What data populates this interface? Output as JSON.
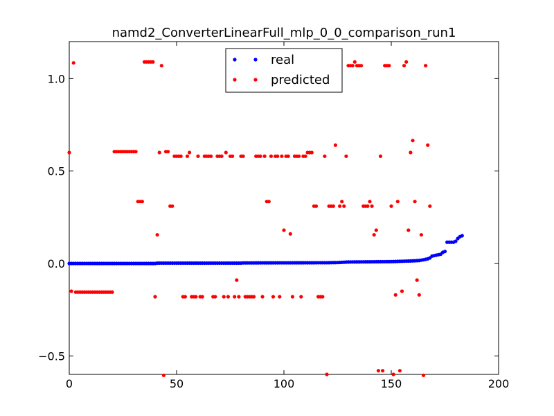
{
  "chart_data": {
    "type": "scatter",
    "title": "namd2_ConverterLinearFull_mlp_0_0_comparison_run1",
    "xlabel": "",
    "ylabel": "",
    "xlim": [
      0,
      200
    ],
    "ylim": [
      -0.6,
      1.2
    ],
    "x_ticks": [
      0,
      50,
      100,
      150,
      200
    ],
    "x_tick_labels": [
      "0",
      "50",
      "100",
      "150",
      "200"
    ],
    "y_ticks": [
      -0.5,
      0.0,
      0.5,
      1.0
    ],
    "y_tick_labels": [
      "−0.5",
      "0.0",
      "0.5",
      "1.0"
    ],
    "grid": false,
    "legend_position": "top-center",
    "series": [
      {
        "name": "real",
        "color": "#0000ff",
        "points": [
          [
            0,
            0.0
          ],
          [
            40,
            0.0
          ],
          [
            41,
            0.002
          ],
          [
            80,
            0.002
          ],
          [
            81,
            0.003
          ],
          [
            120,
            0.004
          ],
          [
            125,
            0.005
          ],
          [
            130,
            0.008
          ],
          [
            150,
            0.01
          ],
          [
            155,
            0.012
          ],
          [
            160,
            0.014
          ],
          [
            163,
            0.016
          ],
          [
            165,
            0.02
          ],
          [
            167,
            0.025
          ],
          [
            168,
            0.03
          ],
          [
            169,
            0.04
          ],
          [
            171,
            0.045
          ],
          [
            173,
            0.05
          ],
          [
            174,
            0.06
          ],
          [
            175,
            0.065
          ],
          [
            176,
            0.115
          ],
          [
            177,
            0.115
          ],
          [
            178,
            0.115
          ],
          [
            179,
            0.115
          ],
          [
            180,
            0.12
          ],
          [
            181,
            0.135
          ],
          [
            182,
            0.145
          ],
          [
            183,
            0.15
          ]
        ]
      },
      {
        "name": "predicted",
        "color": "#ff0000",
        "points": [
          [
            0,
            0.6
          ],
          [
            1,
            -0.15
          ],
          [
            2,
            1.085
          ],
          [
            3,
            -0.155
          ],
          [
            4,
            -0.155
          ],
          [
            5,
            -0.155
          ],
          [
            6,
            -0.155
          ],
          [
            7,
            -0.155
          ],
          [
            8,
            -0.155
          ],
          [
            9,
            -0.155
          ],
          [
            10,
            -0.155
          ],
          [
            11,
            -0.155
          ],
          [
            12,
            -0.155
          ],
          [
            13,
            -0.155
          ],
          [
            14,
            -0.155
          ],
          [
            15,
            -0.155
          ],
          [
            16,
            -0.155
          ],
          [
            17,
            -0.155
          ],
          [
            18,
            -0.155
          ],
          [
            19,
            -0.155
          ],
          [
            20,
            -0.155
          ],
          [
            21,
            0.605
          ],
          [
            22,
            0.605
          ],
          [
            23,
            0.605
          ],
          [
            24,
            0.605
          ],
          [
            25,
            0.605
          ],
          [
            26,
            0.605
          ],
          [
            27,
            0.605
          ],
          [
            28,
            0.605
          ],
          [
            29,
            0.605
          ],
          [
            30,
            0.605
          ],
          [
            31,
            0.605
          ],
          [
            32,
            0.335
          ],
          [
            33,
            0.335
          ],
          [
            34,
            0.335
          ],
          [
            35,
            1.09
          ],
          [
            36,
            1.09
          ],
          [
            37,
            1.09
          ],
          [
            38,
            1.09
          ],
          [
            39,
            1.09
          ],
          [
            40,
            -0.18
          ],
          [
            41,
            0.155
          ],
          [
            42,
            0.6
          ],
          [
            43,
            1.07
          ],
          [
            44,
            -0.605
          ],
          [
            45,
            0.605
          ],
          [
            46,
            0.605
          ],
          [
            47,
            0.31
          ],
          [
            48,
            0.31
          ],
          [
            49,
            0.58
          ],
          [
            50,
            0.58
          ],
          [
            51,
            0.58
          ],
          [
            52,
            0.58
          ],
          [
            53,
            -0.18
          ],
          [
            54,
            -0.18
          ],
          [
            55,
            0.58
          ],
          [
            56,
            0.6
          ],
          [
            57,
            -0.18
          ],
          [
            58,
            -0.18
          ],
          [
            59,
            -0.18
          ],
          [
            60,
            0.58
          ],
          [
            61,
            -0.18
          ],
          [
            62,
            -0.18
          ],
          [
            63,
            0.58
          ],
          [
            64,
            0.58
          ],
          [
            65,
            0.58
          ],
          [
            66,
            0.58
          ],
          [
            67,
            -0.18
          ],
          [
            68,
            -0.18
          ],
          [
            69,
            0.58
          ],
          [
            70,
            0.58
          ],
          [
            71,
            0.58
          ],
          [
            72,
            -0.18
          ],
          [
            73,
            0.6
          ],
          [
            74,
            -0.18
          ],
          [
            75,
            0.58
          ],
          [
            76,
            0.58
          ],
          [
            77,
            -0.18
          ],
          [
            78,
            -0.09
          ],
          [
            79,
            -0.18
          ],
          [
            80,
            0.58
          ],
          [
            81,
            0.58
          ],
          [
            82,
            -0.18
          ],
          [
            83,
            -0.18
          ],
          [
            84,
            -0.18
          ],
          [
            85,
            -0.18
          ],
          [
            86,
            -0.18
          ],
          [
            87,
            0.58
          ],
          [
            88,
            0.58
          ],
          [
            89,
            0.58
          ],
          [
            90,
            -0.18
          ],
          [
            91,
            0.58
          ],
          [
            92,
            0.335
          ],
          [
            93,
            0.335
          ],
          [
            94,
            0.58
          ],
          [
            95,
            -0.18
          ],
          [
            96,
            0.58
          ],
          [
            97,
            0.58
          ],
          [
            98,
            -0.18
          ],
          [
            99,
            0.58
          ],
          [
            100,
            0.18
          ],
          [
            101,
            0.58
          ],
          [
            102,
            0.58
          ],
          [
            103,
            0.16
          ],
          [
            104,
            -0.18
          ],
          [
            105,
            0.58
          ],
          [
            106,
            0.58
          ],
          [
            107,
            0.58
          ],
          [
            108,
            -0.18
          ],
          [
            109,
            0.58
          ],
          [
            110,
            0.58
          ],
          [
            111,
            0.6
          ],
          [
            112,
            0.6
          ],
          [
            113,
            0.6
          ],
          [
            114,
            0.31
          ],
          [
            115,
            0.31
          ],
          [
            116,
            -0.18
          ],
          [
            117,
            -0.18
          ],
          [
            118,
            -0.18
          ],
          [
            119,
            0.58
          ],
          [
            120,
            -0.6
          ],
          [
            121,
            0.31
          ],
          [
            122,
            0.31
          ],
          [
            123,
            0.31
          ],
          [
            124,
            0.64
          ],
          [
            125,
            1.07
          ],
          [
            126,
            0.31
          ],
          [
            127,
            0.335
          ],
          [
            128,
            0.31
          ],
          [
            129,
            0.58
          ],
          [
            130,
            1.07
          ],
          [
            131,
            1.07
          ],
          [
            132,
            1.07
          ],
          [
            133,
            1.09
          ],
          [
            134,
            1.07
          ],
          [
            135,
            1.07
          ],
          [
            136,
            1.07
          ],
          [
            137,
            0.31
          ],
          [
            138,
            0.31
          ],
          [
            139,
            0.31
          ],
          [
            140,
            0.335
          ],
          [
            141,
            0.31
          ],
          [
            142,
            0.155
          ],
          [
            143,
            0.18
          ],
          [
            144,
            -0.58
          ],
          [
            145,
            0.58
          ],
          [
            146,
            -0.58
          ],
          [
            147,
            1.07
          ],
          [
            148,
            1.07
          ],
          [
            149,
            1.07
          ],
          [
            150,
            0.31
          ],
          [
            151,
            -0.6
          ],
          [
            152,
            -0.17
          ],
          [
            153,
            0.335
          ],
          [
            154,
            -0.58
          ],
          [
            155,
            -0.15
          ],
          [
            156,
            1.07
          ],
          [
            157,
            1.09
          ],
          [
            158,
            0.18
          ],
          [
            159,
            0.6
          ],
          [
            160,
            0.665
          ],
          [
            161,
            0.335
          ],
          [
            162,
            -0.09
          ],
          [
            163,
            -0.17
          ],
          [
            164,
            0.155
          ],
          [
            165,
            -0.605
          ],
          [
            166,
            1.07
          ],
          [
            167,
            0.64
          ],
          [
            168,
            0.31
          ]
        ]
      }
    ]
  }
}
